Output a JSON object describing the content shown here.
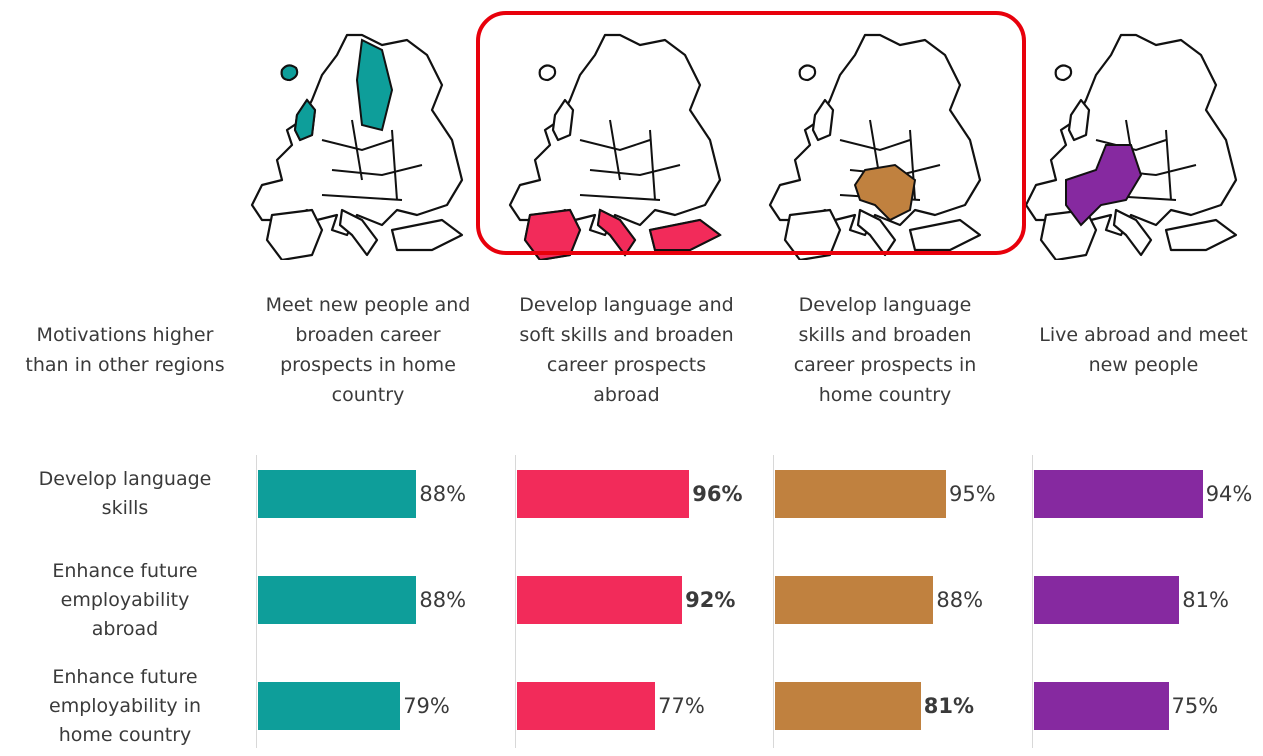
{
  "chart_data": {
    "type": "bar",
    "orientation": "horizontal",
    "row_header": "Motivations higher than in other regions",
    "categories": [
      "Develop language skills",
      "Enhance future employability abroad",
      "Enhance future employability in home country"
    ],
    "xlim": [
      0,
      100
    ],
    "series": [
      {
        "name": "Meet new people and broaden career prospects in home country",
        "color": "#0e9e9a",
        "values": [
          88,
          88,
          79
        ],
        "value_labels": [
          "88%",
          "88%",
          "79%"
        ],
        "bold": [
          false,
          false,
          false
        ]
      },
      {
        "name": "Develop language and soft skills and broaden career prospects abroad",
        "color": "#f22b5a",
        "values": [
          96,
          92,
          77
        ],
        "value_labels": [
          "96%",
          "92%",
          "77%"
        ],
        "bold": [
          true,
          true,
          false
        ]
      },
      {
        "name": "Develop language skills and broaden career prospects in home country",
        "color": "#c0813f",
        "values": [
          95,
          88,
          81
        ],
        "value_labels": [
          "95%",
          "88%",
          "81%"
        ],
        "bold": [
          false,
          false,
          true
        ]
      },
      {
        "name": "Live abroad and meet new people",
        "color": "#8629a0",
        "values": [
          94,
          81,
          75
        ],
        "value_labels": [
          "94%",
          "81%",
          "75%"
        ],
        "bold": [
          false,
          false,
          false
        ]
      }
    ]
  }
}
